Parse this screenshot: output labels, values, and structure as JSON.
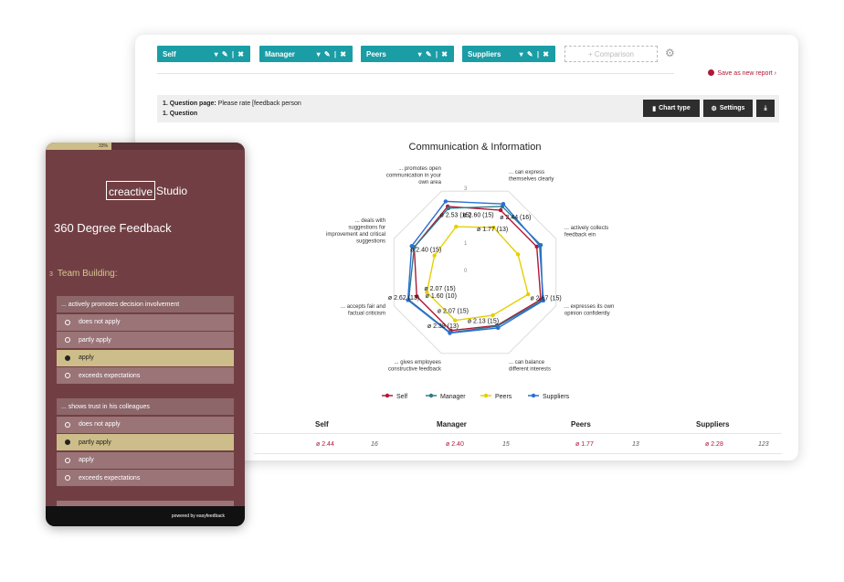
{
  "filters": [
    {
      "name": "Self",
      "controls": "▾ ✎ | ✖"
    },
    {
      "name": "Manager",
      "controls": "▾ ✎ | ✖"
    },
    {
      "name": "Peers",
      "controls": "▾ ✎ | ✖"
    },
    {
      "name": "Suppliers",
      "controls": "▾ ✎ | ✖"
    }
  ],
  "comparison_label": "+ Comparison",
  "save_report_label": "Save as new report",
  "question": {
    "line1_bold": "1. Question page:",
    "line1_text": " Please rate [feedback person",
    "line2": "1. Question"
  },
  "buttons": {
    "chart_type": "Chart type",
    "settings": "Settings"
  },
  "chart_data": {
    "type": "radar",
    "title": "Communication & Information",
    "axes": [
      "... can express themselves clearly",
      "... actively collects feedback ein",
      "... expresses its own opinion confidently",
      "... can balance different interests",
      "... gives employees constructive feedback",
      "... accepts fair and factual criticism",
      "... deals with suggestions for improvement and critical suggestions",
      "... promotes open communication in your own area"
    ],
    "ring_labels": [
      "0",
      "1",
      "2",
      "3"
    ],
    "rmax": 3.2,
    "series": [
      {
        "name": "Self",
        "color": "#b01838",
        "values": [
          2.45,
          2.44,
          2.6,
          2.1,
          2.3,
          2.3,
          2.4,
          2.6
        ]
      },
      {
        "name": "Manager",
        "color": "#2c7b8c",
        "values": [
          2.6,
          2.6,
          2.67,
          2.13,
          2.38,
          2.62,
          2.4,
          2.53
        ]
      },
      {
        "name": "Peers",
        "color": "#e5d000",
        "values": [
          1.77,
          1.7,
          2.1,
          1.7,
          1.9,
          1.9,
          1.6,
          1.8
        ]
      },
      {
        "name": "Suppliers",
        "color": "#2a6fd6",
        "values": [
          2.7,
          2.55,
          2.7,
          2.2,
          2.4,
          2.65,
          2.5,
          2.8
        ]
      }
    ],
    "annotations": [
      {
        "text": "ø 2.60 (15)",
        "a": 0,
        "r": 2.3,
        "dx": -40
      },
      {
        "text": "ø 2.44 (16)",
        "a": 0,
        "r": 2.2,
        "dx": 2
      },
      {
        "text": "ø 1.77 (13)",
        "a": 0,
        "r": 1.74,
        "dx": -18
      },
      {
        "text": "ø 2.67 (15)",
        "a": 2,
        "r": 2.4,
        "dx": -6
      },
      {
        "text": "ø 2.13 (15)",
        "a": 3,
        "r": 1.9,
        "dx": -30
      },
      {
        "text": "ø 1.60 (10)",
        "a": 4,
        "r": 0.9,
        "dx": -44
      },
      {
        "text": "ø 2.07 (15)",
        "a": 4,
        "r": 1.5,
        "dx": -24
      },
      {
        "text": "ø 2.38 (13)",
        "a": 4,
        "r": 2.1,
        "dx": -28
      },
      {
        "text": "ø 2.07 (15)",
        "a": 5,
        "r": 1.5,
        "dx": -14
      },
      {
        "text": "ø 2.62 (13)",
        "a": 5,
        "r": 2.35,
        "dx": -30
      },
      {
        "text": "ø 2.40 (15)",
        "a": 6,
        "r": 2.2,
        "dx": -10
      },
      {
        "text": "ø 2.53 (15)",
        "a": 7,
        "r": 2.3,
        "dx": -12
      }
    ]
  },
  "table": {
    "headers": [
      "Self",
      "Manager",
      "Peers",
      "Suppliers"
    ],
    "row": [
      {
        "avg": "ø 2.44",
        "n": "16"
      },
      {
        "avg": "ø 2.40",
        "n": "15"
      },
      {
        "avg": "ø 1.77",
        "n": "13"
      },
      {
        "avg": "ø 2.28",
        "n": "123"
      }
    ]
  },
  "survey": {
    "progress": "33%",
    "logo_boxed": "creactive",
    "logo_rest": "Studio",
    "title": "360 Degree Feedback",
    "section_number": "3",
    "section_title": "Team Building:",
    "questions": [
      {
        "label": "... actively promotes decision involvement",
        "options": [
          {
            "text": "does not apply",
            "selected": false
          },
          {
            "text": "partly apply",
            "selected": false
          },
          {
            "text": "apply",
            "selected": true
          },
          {
            "text": "exceeds expectations",
            "selected": false
          }
        ]
      },
      {
        "label": "... shows trust in his colleagues",
        "options": [
          {
            "text": "does not apply",
            "selected": false
          },
          {
            "text": "partly apply",
            "selected": true
          },
          {
            "text": "apply",
            "selected": false
          },
          {
            "text": "exceeds expectations",
            "selected": false
          }
        ]
      }
    ],
    "footer": "powered by easyfeedback"
  },
  "colors": {
    "accent": "#1a9da5",
    "survey_bg": "#713f43",
    "selected": "#cdbd8a",
    "alert": "#b01838"
  }
}
